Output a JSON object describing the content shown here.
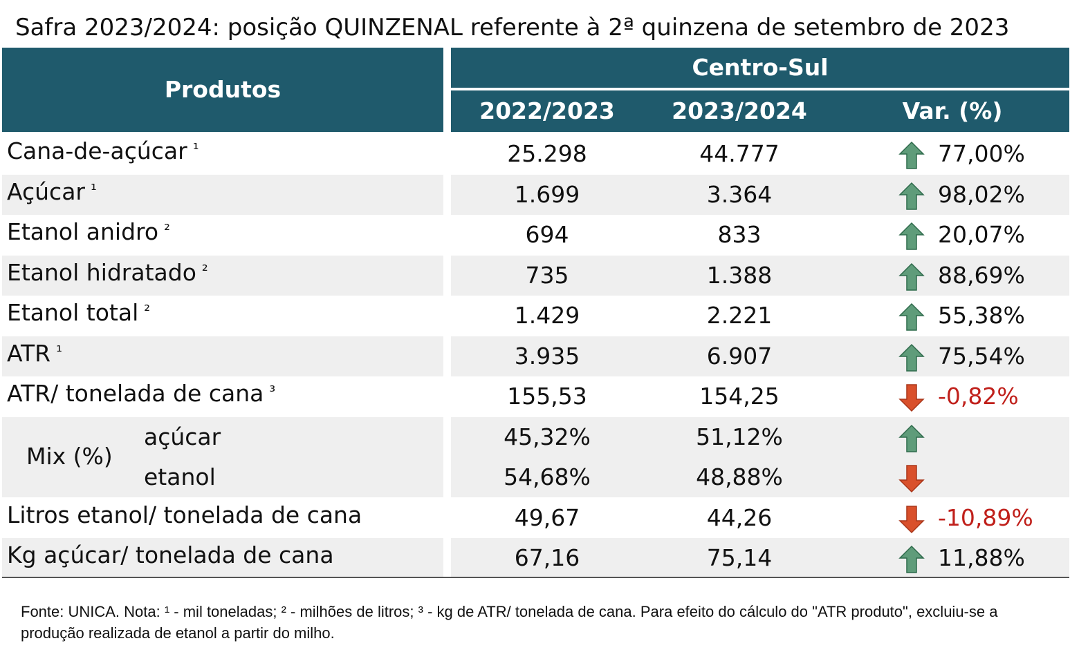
{
  "title": "Safra 2023/2024: posição QUINZENAL referente à 2ª quinzena de setembro de 2023",
  "colors": {
    "header_bg": "#1f5a6c",
    "row_shade": "#efefef",
    "up_arrow": "#5f9c7a",
    "down_arrow": "#d9502b",
    "negative_text": "#c0201b"
  },
  "chart_data": {
    "type": "table",
    "header": {
      "products": "Produtos",
      "region": "Centro-Sul",
      "col_2022": "2022/2023",
      "col_2023": "2023/2024",
      "col_var": "Var. (%)"
    },
    "rows": [
      {
        "label": "Cana-de-açúcar",
        "sup": "¹",
        "v2022": "25.298",
        "v2023": "44.777",
        "arrow": "up",
        "var": "77,00%"
      },
      {
        "label": "Açúcar",
        "sup": "¹",
        "v2022": "1.699",
        "v2023": "3.364",
        "arrow": "up",
        "var": "98,02%"
      },
      {
        "label": "Etanol anidro",
        "sup": "²",
        "v2022": "694",
        "v2023": "833",
        "arrow": "up",
        "var": "20,07%"
      },
      {
        "label": "Etanol hidratado",
        "sup": "²",
        "v2022": "735",
        "v2023": "1.388",
        "arrow": "up",
        "var": "88,69%"
      },
      {
        "label": "Etanol total",
        "sup": "²",
        "v2022": "1.429",
        "v2023": "2.221",
        "arrow": "up",
        "var": "55,38%"
      },
      {
        "label": "ATR",
        "sup": "¹",
        "v2022": "3.935",
        "v2023": "6.907",
        "arrow": "up",
        "var": "75,54%"
      },
      {
        "label": "ATR/ tonelada de cana",
        "sup": "³",
        "v2022": "155,53",
        "v2023": "154,25",
        "arrow": "down",
        "var": "-0,82%"
      }
    ],
    "mix": {
      "label": "Mix (%)",
      "rows": [
        {
          "label": "açúcar",
          "v2022": "45,32%",
          "v2023": "51,12%",
          "arrow": "up",
          "var": ""
        },
        {
          "label": "etanol",
          "v2022": "54,68%",
          "v2023": "48,88%",
          "arrow": "down",
          "var": ""
        }
      ]
    },
    "tail_rows": [
      {
        "label": "Litros etanol/ tonelada de cana",
        "sup": "",
        "v2022": "49,67",
        "v2023": "44,26",
        "arrow": "down",
        "var": "-10,89%"
      },
      {
        "label": "Kg açúcar/ tonelada de cana",
        "sup": "",
        "v2022": "67,16",
        "v2023": "75,14",
        "arrow": "up",
        "var": "11,88%"
      }
    ]
  },
  "footer": "Fonte: UNICA. Nota: ¹ - mil toneladas; ² - milhões de litros; ³ - kg de ATR/ tonelada de cana. Para efeito do cálculo do \"ATR produto\", excluiu-se a produção realizada de etanol a partir do milho."
}
